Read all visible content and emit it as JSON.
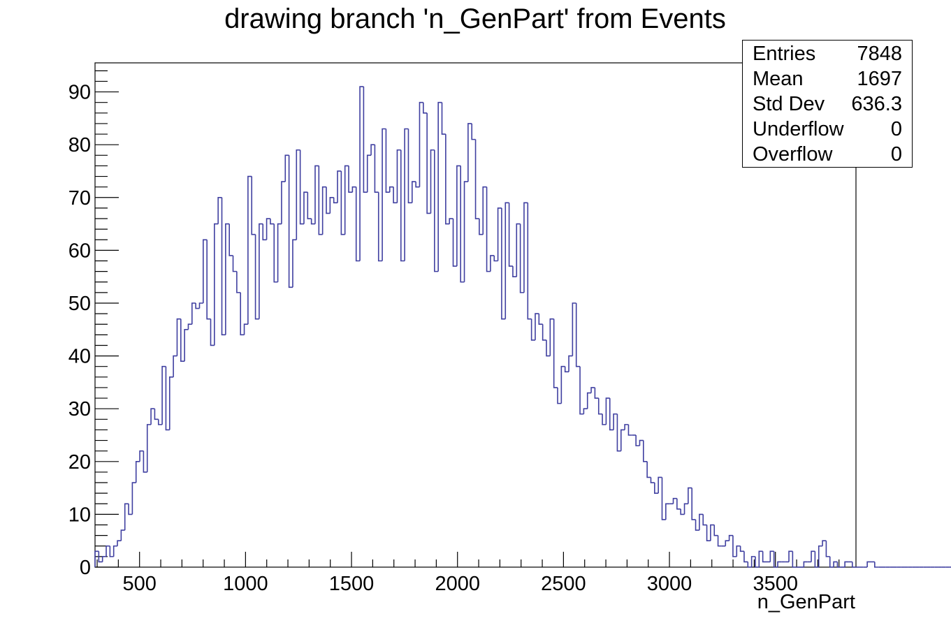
{
  "chart_data": {
    "type": "histogram",
    "title": "drawing branch 'n_GenPart' from Events",
    "xlabel": "n_GenPart",
    "ylabel": "",
    "xlim": [
      290,
      3880
    ],
    "ylim": [
      0,
      95.5
    ],
    "bin_width": 17.6,
    "x_ticks": [
      500,
      1000,
      1500,
      2000,
      2500,
      3000,
      3500
    ],
    "y_ticks": [
      0,
      10,
      20,
      30,
      40,
      50,
      60,
      70,
      80,
      90
    ],
    "line_color": "#3f3fa0",
    "values": [
      3,
      1,
      2,
      4,
      2,
      4,
      5,
      7,
      12,
      10,
      16,
      20,
      22,
      18,
      27,
      30,
      28,
      27,
      38,
      26,
      36,
      40,
      47,
      39,
      45,
      46,
      50,
      49,
      50,
      62,
      47,
      42,
      65,
      70,
      44,
      65,
      59,
      56,
      52,
      44,
      46,
      74,
      63,
      47,
      65,
      62,
      66,
      65,
      54,
      65,
      73,
      78,
      53,
      62,
      79,
      65,
      71,
      66,
      65,
      76,
      63,
      72,
      67,
      70,
      69,
      75,
      63,
      76,
      71,
      72,
      58,
      91,
      71,
      78,
      80,
      71,
      58,
      83,
      71,
      72,
      69,
      79,
      58,
      83,
      69,
      73,
      72,
      88,
      86,
      67,
      79,
      56,
      88,
      82,
      65,
      66,
      57,
      76,
      54,
      73,
      84,
      81,
      66,
      63,
      72,
      56,
      59,
      58,
      68,
      47,
      69,
      57,
      55,
      65,
      52,
      69,
      47,
      43,
      48,
      46,
      43,
      40,
      47,
      34,
      31,
      38,
      37,
      40,
      50,
      38,
      29,
      30,
      33,
      34,
      32,
      29,
      27,
      32,
      26,
      29,
      22,
      26,
      27,
      25,
      25,
      23,
      24,
      20,
      17,
      16,
      14,
      17,
      9,
      12,
      12,
      13,
      11,
      10,
      12,
      15,
      9,
      7,
      10,
      8,
      5,
      8,
      6,
      4,
      4,
      5,
      6,
      2,
      4,
      3,
      1,
      0,
      2,
      0,
      3,
      1,
      1,
      3,
      0,
      1,
      1,
      1,
      3,
      0,
      0,
      0,
      1,
      1,
      3,
      0,
      4,
      5,
      2,
      0,
      1,
      0,
      0,
      1,
      1,
      0,
      0,
      0,
      0,
      1,
      1,
      0,
      0,
      0,
      0,
      0,
      0,
      0,
      0,
      0,
      0,
      0,
      0,
      0,
      0,
      0,
      0,
      0,
      0,
      0,
      0,
      0,
      0,
      1,
      0,
      0,
      0,
      0,
      0,
      0,
      1
    ],
    "stats": {
      "rows": [
        {
          "label": "Entries",
          "value": "7848"
        },
        {
          "label": "Mean",
          "value": "1697"
        },
        {
          "label": "Std Dev",
          "value": "636.3"
        },
        {
          "label": "Underflow",
          "value": "0"
        },
        {
          "label": "Overflow",
          "value": "0"
        }
      ]
    }
  }
}
